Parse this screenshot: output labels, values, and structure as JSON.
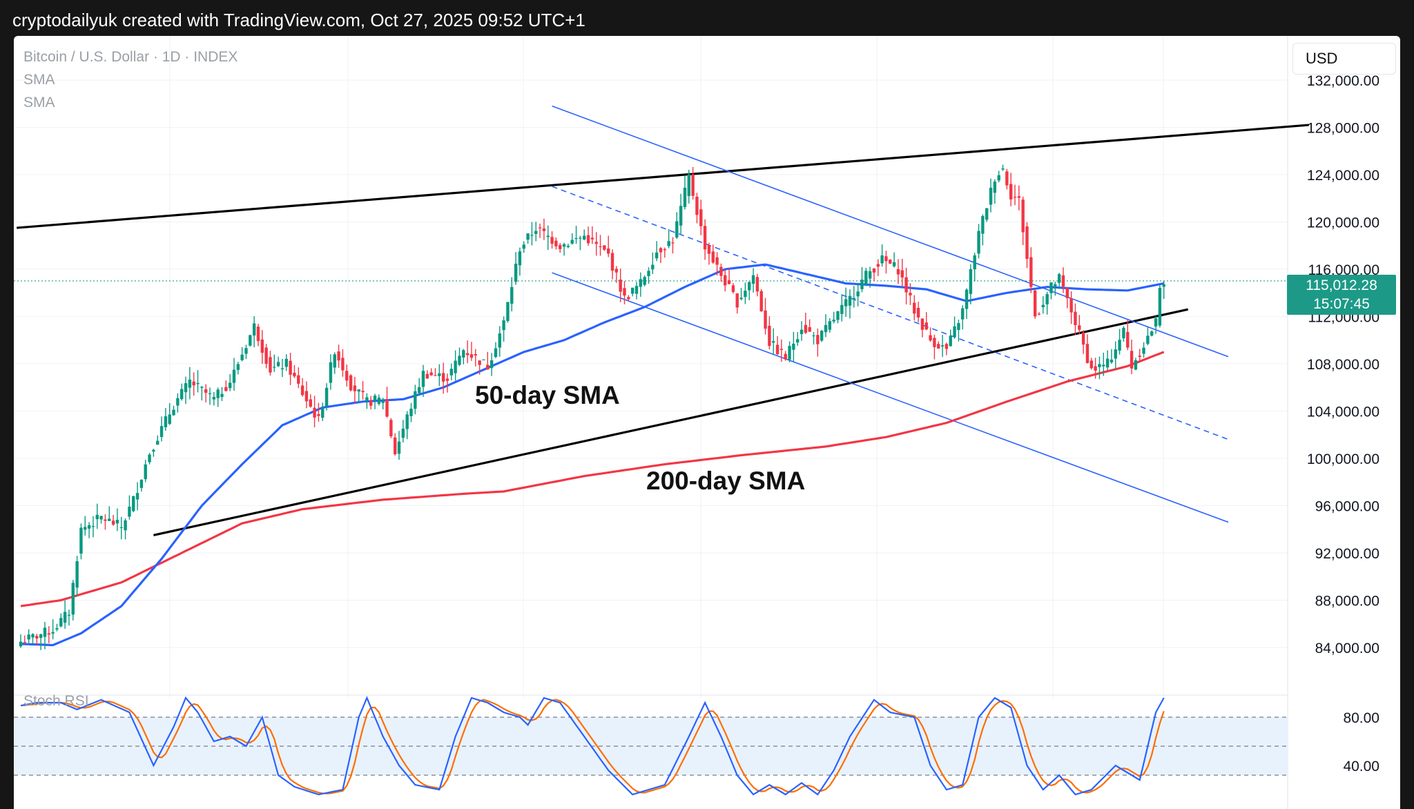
{
  "header": {
    "text": "cryptodailyuk created with TradingView.com, Oct 27, 2025 09:52 UTC+1"
  },
  "legend": {
    "symbol": "Bitcoin / U.S. Dollar · 1D · INDEX",
    "ind1": "SMA",
    "ind2": "SMA"
  },
  "currency": "USD",
  "last_price": {
    "price": "115,012.28",
    "countdown": "15:07:45"
  },
  "annotations": {
    "sma50": "50-day SMA",
    "sma200": "200-day SMA"
  },
  "rsi": {
    "title": "Stoch RSI"
  },
  "colors": {
    "up": "#089981",
    "down": "#f23645",
    "sma50": "#2962ff",
    "sma200": "#f23645",
    "trendline": "#000000",
    "channel": "#2962ff",
    "price_line": "#1c9a87",
    "stoch_k": "#2962ff",
    "stoch_d": "#ff6d00",
    "rsi_band": "#e8f2fd"
  },
  "chart_data": [
    {
      "type": "candlestick",
      "y_axis": {
        "min": 82000,
        "max": 134000,
        "ticks": [
          "132,000.00",
          "128,000.00",
          "124,000.00",
          "120,000.00",
          "116,000.00",
          "112,000.00",
          "108,000.00",
          "104,000.00",
          "100,000.00",
          "96,000.00",
          "92,000.00",
          "88,000.00",
          "84,000.00"
        ]
      },
      "anchors": [
        {
          "i": 0,
          "p": 84500
        },
        {
          "i": 8,
          "p": 85500
        },
        {
          "i": 12,
          "p": 87000
        },
        {
          "i": 15,
          "p": 94000
        },
        {
          "i": 20,
          "p": 95000
        },
        {
          "i": 25,
          "p": 94200
        },
        {
          "i": 28,
          "p": 96500
        },
        {
          "i": 32,
          "p": 100500
        },
        {
          "i": 38,
          "p": 104500
        },
        {
          "i": 42,
          "p": 106500
        },
        {
          "i": 48,
          "p": 105000
        },
        {
          "i": 52,
          "p": 106500
        },
        {
          "i": 58,
          "p": 111200
        },
        {
          "i": 62,
          "p": 107500
        },
        {
          "i": 66,
          "p": 108000
        },
        {
          "i": 70,
          "p": 105500
        },
        {
          "i": 74,
          "p": 103200
        },
        {
          "i": 78,
          "p": 109200
        },
        {
          "i": 82,
          "p": 106200
        },
        {
          "i": 86,
          "p": 104800
        },
        {
          "i": 90,
          "p": 105000
        },
        {
          "i": 93,
          "p": 100500
        },
        {
          "i": 96,
          "p": 103500
        },
        {
          "i": 100,
          "p": 107200
        },
        {
          "i": 106,
          "p": 106800
        },
        {
          "i": 110,
          "p": 109200
        },
        {
          "i": 116,
          "p": 107800
        },
        {
          "i": 120,
          "p": 111500
        },
        {
          "i": 124,
          "p": 117800
        },
        {
          "i": 128,
          "p": 119500
        },
        {
          "i": 134,
          "p": 118000
        },
        {
          "i": 140,
          "p": 118800
        },
        {
          "i": 146,
          "p": 117200
        },
        {
          "i": 150,
          "p": 113500
        },
        {
          "i": 154,
          "p": 114800
        },
        {
          "i": 158,
          "p": 117500
        },
        {
          "i": 162,
          "p": 118500
        },
        {
          "i": 166,
          "p": 123800
        },
        {
          "i": 170,
          "p": 118000
        },
        {
          "i": 174,
          "p": 115500
        },
        {
          "i": 178,
          "p": 113200
        },
        {
          "i": 182,
          "p": 115500
        },
        {
          "i": 186,
          "p": 109800
        },
        {
          "i": 190,
          "p": 108500
        },
        {
          "i": 194,
          "p": 111200
        },
        {
          "i": 198,
          "p": 110000
        },
        {
          "i": 202,
          "p": 111800
        },
        {
          "i": 206,
          "p": 113500
        },
        {
          "i": 210,
          "p": 115500
        },
        {
          "i": 214,
          "p": 116800
        },
        {
          "i": 218,
          "p": 116000
        },
        {
          "i": 222,
          "p": 112500
        },
        {
          "i": 226,
          "p": 110000
        },
        {
          "i": 230,
          "p": 109200
        },
        {
          "i": 234,
          "p": 112500
        },
        {
          "i": 238,
          "p": 119000
        },
        {
          "i": 242,
          "p": 123800
        },
        {
          "i": 244,
          "p": 124500
        },
        {
          "i": 246,
          "p": 122300
        },
        {
          "i": 248,
          "p": 121800
        },
        {
          "i": 252,
          "p": 112000
        },
        {
          "i": 256,
          "p": 114500
        },
        {
          "i": 258,
          "p": 115200
        },
        {
          "i": 262,
          "p": 111500
        },
        {
          "i": 266,
          "p": 107500
        },
        {
          "i": 270,
          "p": 108000
        },
        {
          "i": 274,
          "p": 110800
        },
        {
          "i": 276,
          "p": 107800
        },
        {
          "i": 278,
          "p": 109000
        },
        {
          "i": 282,
          "p": 111500
        },
        {
          "i": 283,
          "p": 114700
        },
        {
          "i": 284,
          "p": 115012
        }
      ],
      "sma50_anchors": [
        {
          "i": 0,
          "p": 84300
        },
        {
          "i": 8,
          "p": 84200
        },
        {
          "i": 15,
          "p": 85200
        },
        {
          "i": 25,
          "p": 87500
        },
        {
          "i": 35,
          "p": 91500
        },
        {
          "i": 45,
          "p": 96000
        },
        {
          "i": 55,
          "p": 99500
        },
        {
          "i": 65,
          "p": 102800
        },
        {
          "i": 75,
          "p": 104300
        },
        {
          "i": 85,
          "p": 104800
        },
        {
          "i": 95,
          "p": 105000
        },
        {
          "i": 105,
          "p": 106000
        },
        {
          "i": 115,
          "p": 107500
        },
        {
          "i": 125,
          "p": 109000
        },
        {
          "i": 135,
          "p": 110000
        },
        {
          "i": 145,
          "p": 111500
        },
        {
          "i": 155,
          "p": 112800
        },
        {
          "i": 165,
          "p": 114500
        },
        {
          "i": 175,
          "p": 116000
        },
        {
          "i": 185,
          "p": 116400
        },
        {
          "i": 195,
          "p": 115600
        },
        {
          "i": 205,
          "p": 114800
        },
        {
          "i": 215,
          "p": 114600
        },
        {
          "i": 225,
          "p": 114300
        },
        {
          "i": 235,
          "p": 113300
        },
        {
          "i": 245,
          "p": 114000
        },
        {
          "i": 255,
          "p": 114500
        },
        {
          "i": 265,
          "p": 114300
        },
        {
          "i": 275,
          "p": 114200
        },
        {
          "i": 284,
          "p": 114800
        }
      ],
      "sma200_anchors": [
        {
          "i": 0,
          "p": 87500
        },
        {
          "i": 10,
          "p": 88000
        },
        {
          "i": 25,
          "p": 89500
        },
        {
          "i": 40,
          "p": 92000
        },
        {
          "i": 55,
          "p": 94500
        },
        {
          "i": 70,
          "p": 95700
        },
        {
          "i": 90,
          "p": 96500
        },
        {
          "i": 110,
          "p": 97000
        },
        {
          "i": 120,
          "p": 97200
        },
        {
          "i": 140,
          "p": 98500
        },
        {
          "i": 160,
          "p": 99500
        },
        {
          "i": 180,
          "p": 100300
        },
        {
          "i": 200,
          "p": 101000
        },
        {
          "i": 215,
          "p": 101800
        },
        {
          "i": 230,
          "p": 103000
        },
        {
          "i": 245,
          "p": 104800
        },
        {
          "i": 260,
          "p": 106500
        },
        {
          "i": 275,
          "p": 107800
        },
        {
          "i": 284,
          "p": 109000
        }
      ],
      "trendlines": [
        {
          "name": "upper-wedge",
          "points": [
            {
              "i": -1,
              "p": 119500
            },
            {
              "i": 320,
              "p": 128200
            }
          ]
        },
        {
          "name": "lower-wedge",
          "points": [
            {
              "i": 33,
              "p": 93500
            },
            {
              "i": 290,
              "p": 112600
            }
          ]
        },
        {
          "name": "channel-top",
          "points": [
            {
              "i": 132,
              "p": 129800
            },
            {
              "i": 300,
              "p": 108600
            }
          ]
        },
        {
          "name": "channel-mid",
          "points": [
            {
              "i": 132,
              "p": 123000
            },
            {
              "i": 300,
              "p": 101600
            },
            "dashed"
          ]
        },
        {
          "name": "channel-bottom",
          "points": [
            {
              "i": 132,
              "p": 115700
            },
            {
              "i": 300,
              "p": 94600
            }
          ]
        }
      ]
    },
    {
      "type": "line",
      "title": "Stoch RSI",
      "y_axis": {
        "ticks": [
          "80.00",
          "40.00"
        ],
        "band": [
          20,
          80
        ]
      },
      "k_anchors": [
        {
          "i": 0,
          "v": 92
        },
        {
          "i": 4,
          "v": 95
        },
        {
          "i": 10,
          "v": 95
        },
        {
          "i": 14,
          "v": 88
        },
        {
          "i": 20,
          "v": 98
        },
        {
          "i": 27,
          "v": 85
        },
        {
          "i": 33,
          "v": 30
        },
        {
          "i": 38,
          "v": 70
        },
        {
          "i": 41,
          "v": 100
        },
        {
          "i": 44,
          "v": 85
        },
        {
          "i": 48,
          "v": 55
        },
        {
          "i": 52,
          "v": 60
        },
        {
          "i": 56,
          "v": 50
        },
        {
          "i": 60,
          "v": 80
        },
        {
          "i": 64,
          "v": 20
        },
        {
          "i": 68,
          "v": 8
        },
        {
          "i": 74,
          "v": 0
        },
        {
          "i": 80,
          "v": 5
        },
        {
          "i": 84,
          "v": 80
        },
        {
          "i": 86,
          "v": 100
        },
        {
          "i": 90,
          "v": 60
        },
        {
          "i": 94,
          "v": 30
        },
        {
          "i": 98,
          "v": 10
        },
        {
          "i": 104,
          "v": 5
        },
        {
          "i": 108,
          "v": 60
        },
        {
          "i": 112,
          "v": 100
        },
        {
          "i": 116,
          "v": 95
        },
        {
          "i": 120,
          "v": 85
        },
        {
          "i": 124,
          "v": 80
        },
        {
          "i": 126,
          "v": 72
        },
        {
          "i": 130,
          "v": 100
        },
        {
          "i": 134,
          "v": 95
        },
        {
          "i": 140,
          "v": 60
        },
        {
          "i": 146,
          "v": 25
        },
        {
          "i": 152,
          "v": 0
        },
        {
          "i": 160,
          "v": 10
        },
        {
          "i": 166,
          "v": 60
        },
        {
          "i": 170,
          "v": 95
        },
        {
          "i": 174,
          "v": 60
        },
        {
          "i": 178,
          "v": 20
        },
        {
          "i": 182,
          "v": 0
        },
        {
          "i": 186,
          "v": 10
        },
        {
          "i": 190,
          "v": 0
        },
        {
          "i": 194,
          "v": 12
        },
        {
          "i": 198,
          "v": 0
        },
        {
          "i": 202,
          "v": 25
        },
        {
          "i": 206,
          "v": 60
        },
        {
          "i": 212,
          "v": 98
        },
        {
          "i": 216,
          "v": 85
        },
        {
          "i": 222,
          "v": 80
        },
        {
          "i": 226,
          "v": 30
        },
        {
          "i": 230,
          "v": 5
        },
        {
          "i": 234,
          "v": 10
        },
        {
          "i": 238,
          "v": 80
        },
        {
          "i": 242,
          "v": 100
        },
        {
          "i": 246,
          "v": 90
        },
        {
          "i": 250,
          "v": 30
        },
        {
          "i": 254,
          "v": 5
        },
        {
          "i": 258,
          "v": 20
        },
        {
          "i": 262,
          "v": 0
        },
        {
          "i": 266,
          "v": 5
        },
        {
          "i": 272,
          "v": 30
        },
        {
          "i": 278,
          "v": 15
        },
        {
          "i": 282,
          "v": 85
        },
        {
          "i": 284,
          "v": 100
        }
      ]
    }
  ]
}
